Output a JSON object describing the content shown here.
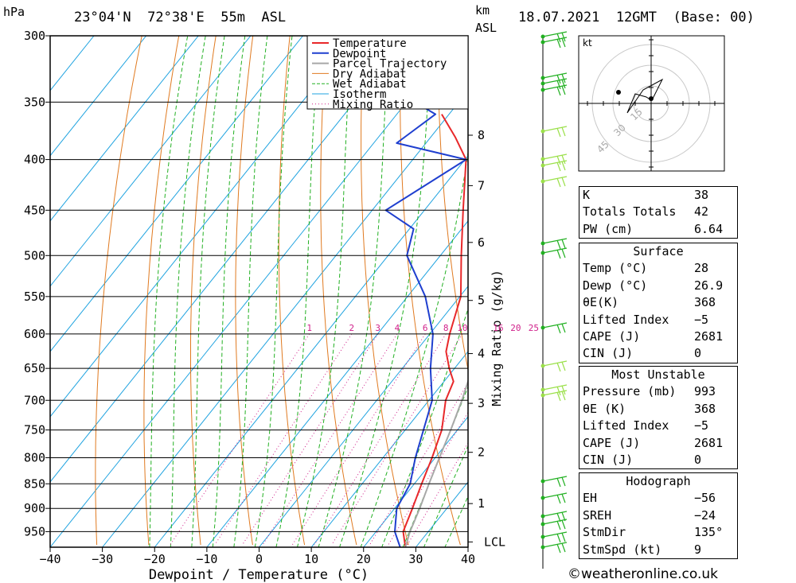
{
  "header": {
    "pressure_unit": "hPa",
    "location": "23°04'N  72°38'E  55m  ASL",
    "km_unit_1": "km",
    "km_unit_2": "ASL",
    "datetime": "18.07.2021  12GMT  (Base: 00)"
  },
  "chart_data": {
    "type": "line",
    "xlabel": "Dewpoint / Temperature (°C)",
    "ylabel": "Mixing Ratio (g/kg)",
    "xlim": [
      -40,
      40
    ],
    "ylim_hpa": [
      300,
      985
    ],
    "pressure_ticks": [
      300,
      350,
      400,
      450,
      500,
      550,
      600,
      650,
      700,
      750,
      800,
      850,
      900,
      950
    ],
    "temperature_ticks": [
      -40,
      -30,
      -20,
      -10,
      0,
      10,
      20,
      30,
      40
    ],
    "temperature_tick_labels": [
      "−40",
      "−30",
      "−20",
      "−10",
      "0",
      "10",
      "20",
      "30",
      "40"
    ],
    "km_ticks": [
      {
        "label": "8",
        "p": 378
      },
      {
        "label": "7",
        "p": 425
      },
      {
        "label": "6",
        "p": 485
      },
      {
        "label": "5",
        "p": 555
      },
      {
        "label": "4",
        "p": 628
      },
      {
        "label": "3",
        "p": 705
      },
      {
        "label": "2",
        "p": 790
      },
      {
        "label": "1",
        "p": 890
      },
      {
        "label": "LCL",
        "p": 973
      }
    ],
    "mixing_ratio_labels": [
      "1",
      "2",
      "3",
      "4",
      "6",
      "8",
      "10",
      "16",
      "20",
      "25"
    ],
    "legend": [
      "Temperature",
      "Dewpoint",
      "Parcel Trajectory",
      "Dry Adiabat",
      "Wet Adiabat",
      "Isotherm",
      "Mixing Ratio"
    ],
    "series": [
      {
        "name": "Temperature",
        "color": "#e8282a",
        "points": [
          [
            985,
            28.0
          ],
          [
            950,
            25.2
          ],
          [
            900,
            23.4
          ],
          [
            850,
            21.4
          ],
          [
            800,
            19.4
          ],
          [
            750,
            17.0
          ],
          [
            700,
            13.2
          ],
          [
            670,
            11.8
          ],
          [
            650,
            9.0
          ],
          [
            625,
            5.8
          ],
          [
            600,
            3.8
          ],
          [
            550,
            0.2
          ],
          [
            500,
            -6.0
          ],
          [
            450,
            -12.6
          ],
          [
            400,
            -19.8
          ],
          [
            380,
            -25.2
          ],
          [
            360,
            -31.4
          ]
        ]
      },
      {
        "name": "Dewpoint",
        "color": "#1f3fcf",
        "points": [
          [
            985,
            27.0
          ],
          [
            950,
            23.6
          ],
          [
            900,
            20.4
          ],
          [
            850,
            19.2
          ],
          [
            800,
            16.2
          ],
          [
            750,
            13.5
          ],
          [
            700,
            10.6
          ],
          [
            650,
            5.4
          ],
          [
            600,
            0.6
          ],
          [
            550,
            -6.6
          ],
          [
            500,
            -16.4
          ],
          [
            470,
            -19.2
          ],
          [
            450,
            -27.4
          ],
          [
            400,
            -19.8
          ],
          [
            385,
            -35.6
          ],
          [
            360,
            -32.6
          ],
          [
            340,
            -44.4
          ],
          [
            330,
            -56.2
          ],
          [
            300,
            -63.4
          ]
        ]
      },
      {
        "name": "Parcel Trajectory",
        "color": "#a8a8a8",
        "points": [
          [
            985,
            28.0
          ],
          [
            950,
            26.5
          ],
          [
            900,
            24.8
          ],
          [
            850,
            22.8
          ],
          [
            800,
            20.8
          ],
          [
            750,
            18.7
          ],
          [
            700,
            16.3
          ],
          [
            650,
            13.4
          ],
          [
            600,
            10.2
          ],
          [
            550,
            6.7
          ],
          [
            500,
            2.7
          ],
          [
            450,
            -2.4
          ],
          [
            400,
            -8.7
          ],
          [
            360,
            -15.1
          ]
        ]
      }
    ]
  },
  "hodograph": {
    "unit": "kt",
    "rings": [
      "15",
      "30",
      "45"
    ]
  },
  "indices": [
    {
      "k": "K",
      "v": "38"
    },
    {
      "k": "Totals Totals",
      "v": "42"
    },
    {
      "k": "PW (cm)",
      "v": "6.64"
    }
  ],
  "surface": {
    "title": "Surface",
    "rows": [
      {
        "k": "Temp (°C)",
        "v": "28"
      },
      {
        "k": "Dewp (°C)",
        "v": "26.9"
      },
      {
        "k": "θE(K)",
        "v": "368"
      },
      {
        "k": "Lifted Index",
        "v": "−5"
      },
      {
        "k": "CAPE (J)",
        "v": "2681"
      },
      {
        "k": "CIN (J)",
        "v": "0"
      }
    ]
  },
  "most_unstable": {
    "title": "Most Unstable",
    "rows": [
      {
        "k": "Pressure (mb)",
        "v": "993"
      },
      {
        "k": "θE (K)",
        "v": "368"
      },
      {
        "k": "Lifted Index",
        "v": "−5"
      },
      {
        "k": "CAPE (J)",
        "v": "2681"
      },
      {
        "k": "CIN (J)",
        "v": "0"
      }
    ]
  },
  "hodograph_table": {
    "title": "Hodograph",
    "rows": [
      {
        "k": "EH",
        "v": "−56"
      },
      {
        "k": "SREH",
        "v": "−24"
      },
      {
        "k": "StmDir",
        "v": "135°"
      },
      {
        "k": "StmSpd (kt)",
        "v": "9"
      }
    ]
  },
  "footer": "©weatheronline.co.uk",
  "colors": {
    "temperature": "#e8282a",
    "dewpoint": "#1f3fcf",
    "parcel": "#a8a8a8",
    "dry": "#e07a20",
    "wet": "#22b022",
    "iso": "#1fa3e0",
    "mix": "#d0208a"
  }
}
